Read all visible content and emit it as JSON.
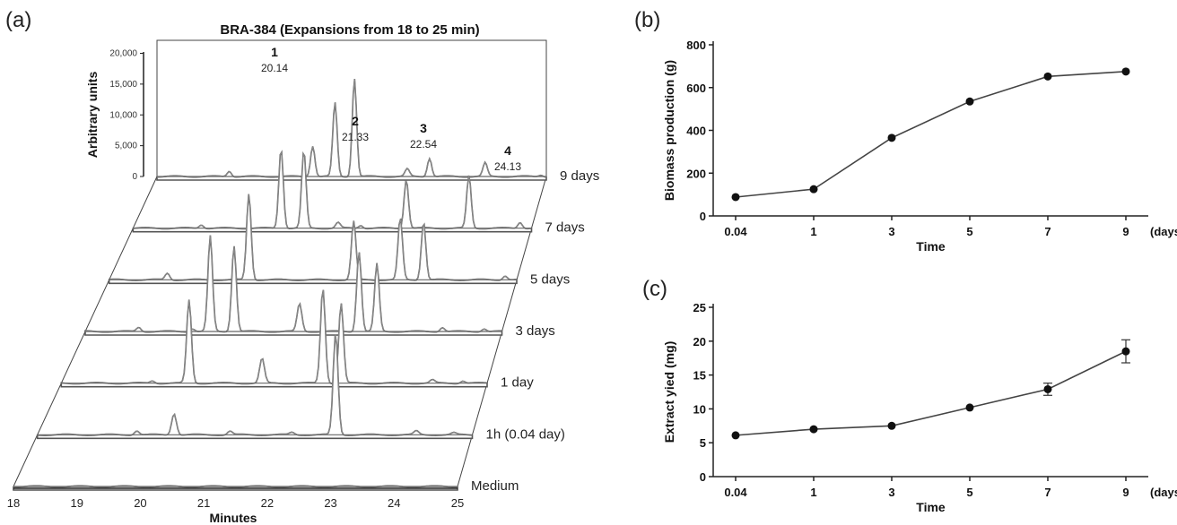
{
  "panels": {
    "a": "(a)",
    "b": "(b)",
    "c": "(c)"
  },
  "chart_data": [
    {
      "id": "a",
      "type": "line",
      "title": "BRA-384 (Expansions from 18 to 25 min)",
      "xlabel": "Minutes",
      "ylabel": "Arbitrary units",
      "xlim": [
        18,
        25
      ],
      "x_ticks": [
        "18",
        "19",
        "20",
        "21",
        "22",
        "23",
        "24",
        "25"
      ],
      "y_ticks": [
        "0",
        "5,000",
        "10,000",
        "15,000",
        "20,000"
      ],
      "ylim": [
        0,
        22000
      ],
      "rows": [
        "Medium",
        "1h (0.04 day)",
        "1 day",
        "3 days",
        "5 days",
        "7 days",
        "9 days"
      ],
      "peaks": [
        {
          "num": "1",
          "rt": "20.14"
        },
        {
          "num": "2",
          "rt": "21.33"
        },
        {
          "num": "3",
          "rt": "22.54"
        },
        {
          "num": "4",
          "rt": "24.13"
        }
      ],
      "traces": [
        {
          "row": "9 days",
          "peaks": [
            [
              19.3,
              900
            ],
            [
              20.8,
              5000
            ],
            [
              21.2,
              12000
            ],
            [
              21.55,
              16000
            ],
            [
              22.5,
              1200
            ],
            [
              22.9,
              3000
            ],
            [
              23.9,
              2200
            ],
            [
              24.9,
              300
            ]
          ]
        },
        {
          "row": "7 days",
          "peaks": [
            [
              19.2,
              600
            ],
            [
              20.6,
              13000
            ],
            [
              21.0,
              12500
            ],
            [
              21.6,
              900
            ],
            [
              22.0,
              500
            ],
            [
              22.8,
              8000
            ],
            [
              23.9,
              8500
            ],
            [
              24.8,
              1000
            ]
          ]
        },
        {
          "row": "5 days",
          "peaks": [
            [
              19.0,
              1100
            ],
            [
              20.4,
              14000
            ],
            [
              22.2,
              9500
            ],
            [
              23.0,
              10000
            ],
            [
              23.4,
              9500
            ],
            [
              24.8,
              700
            ]
          ]
        },
        {
          "row": "3 days",
          "peaks": [
            [
              18.9,
              700
            ],
            [
              19.8,
              500
            ],
            [
              20.1,
              15500
            ],
            [
              20.5,
              14000
            ],
            [
              21.6,
              4500
            ],
            [
              22.6,
              13000
            ],
            [
              22.9,
              11000
            ],
            [
              24.0,
              700
            ],
            [
              24.7,
              500
            ]
          ]
        },
        {
          "row": "1 day",
          "peaks": [
            [
              19.5,
              400
            ],
            [
              20.1,
              13500
            ],
            [
              21.3,
              4000
            ],
            [
              22.3,
              15500
            ],
            [
              22.6,
              13000
            ],
            [
              24.1,
              500
            ],
            [
              24.6,
              400
            ]
          ]
        },
        {
          "row": "1h (0.04 day)",
          "peaks": [
            [
              19.6,
              700
            ],
            [
              20.2,
              3500
            ],
            [
              21.1,
              600
            ],
            [
              22.1,
              400
            ],
            [
              22.8,
              16500
            ],
            [
              24.1,
              600
            ],
            [
              24.7,
              300
            ]
          ]
        },
        {
          "row": "Medium",
          "peaks": []
        }
      ]
    },
    {
      "id": "b",
      "type": "line",
      "xlabel": "Time",
      "x_unit": "(days)",
      "ylabel": "Biomass production (g)",
      "categories": [
        "0.04",
        "1",
        "3",
        "5",
        "7",
        "9"
      ],
      "y_ticks": [
        "0",
        "200",
        "400",
        "600",
        "800"
      ],
      "ylim": [
        0,
        800
      ],
      "values": [
        88,
        125,
        365,
        535,
        652,
        675
      ]
    },
    {
      "id": "c",
      "type": "line",
      "xlabel": "Time",
      "x_unit": "(days)",
      "ylabel": "Extract yied (mg)",
      "categories": [
        "0.04",
        "1",
        "3",
        "5",
        "7",
        "9"
      ],
      "y_ticks": [
        "0",
        "5",
        "10",
        "15",
        "20",
        "25"
      ],
      "ylim": [
        0,
        25
      ],
      "values": [
        6.1,
        7.0,
        7.5,
        10.2,
        12.9,
        18.5
      ],
      "errors": [
        0,
        0,
        0,
        0,
        0.9,
        1.7
      ]
    }
  ]
}
